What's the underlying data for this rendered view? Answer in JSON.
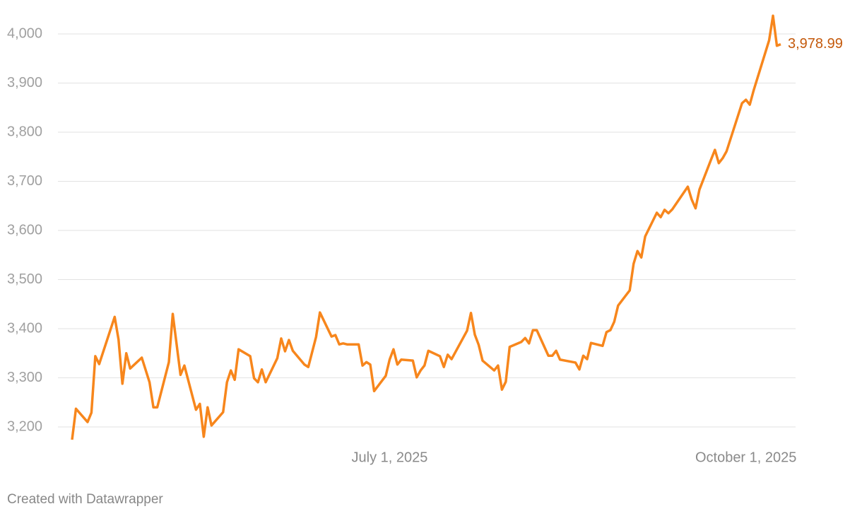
{
  "chart_data": {
    "type": "line",
    "credit": "Created with Datawrapper",
    "x": [
      "2025-04-10",
      "2025-04-11",
      "2025-04-14",
      "2025-04-15",
      "2025-04-16",
      "2025-04-17",
      "2025-04-21",
      "2025-04-22",
      "2025-04-23",
      "2025-04-24",
      "2025-04-25",
      "2025-04-28",
      "2025-04-30",
      "2025-05-01",
      "2025-05-02",
      "2025-05-05",
      "2025-05-06",
      "2025-05-08",
      "2025-05-09",
      "2025-05-12",
      "2025-05-13",
      "2025-05-14",
      "2025-05-15",
      "2025-05-16",
      "2025-05-19",
      "2025-05-20",
      "2025-05-21",
      "2025-05-22",
      "2025-05-23",
      "2025-05-26",
      "2025-05-27",
      "2025-05-28",
      "2025-05-29",
      "2025-05-30",
      "2025-06-02",
      "2025-06-03",
      "2025-06-04",
      "2025-06-05",
      "2025-06-06",
      "2025-06-09",
      "2025-06-10",
      "2025-06-12",
      "2025-06-13",
      "2025-06-16",
      "2025-06-17",
      "2025-06-18",
      "2025-06-19",
      "2025-06-20",
      "2025-06-23",
      "2025-06-24",
      "2025-06-25",
      "2025-06-26",
      "2025-06-27",
      "2025-06-30",
      "2025-07-01",
      "2025-07-02",
      "2025-07-03",
      "2025-07-04",
      "2025-07-07",
      "2025-07-08",
      "2025-07-09",
      "2025-07-10",
      "2025-07-11",
      "2025-07-14",
      "2025-07-15",
      "2025-07-16",
      "2025-07-17",
      "2025-07-21",
      "2025-07-22",
      "2025-07-23",
      "2025-07-24",
      "2025-07-25",
      "2025-07-28",
      "2025-07-29",
      "2025-07-30",
      "2025-07-31",
      "2025-08-01",
      "2025-08-04",
      "2025-08-05",
      "2025-08-06",
      "2025-08-07",
      "2025-08-08",
      "2025-08-11",
      "2025-08-12",
      "2025-08-13",
      "2025-08-14",
      "2025-08-18",
      "2025-08-19",
      "2025-08-20",
      "2025-08-21",
      "2025-08-22",
      "2025-08-25",
      "2025-08-26",
      "2025-08-27",
      "2025-08-28",
      "2025-08-29",
      "2025-09-01",
      "2025-09-02",
      "2025-09-03",
      "2025-09-04",
      "2025-09-05",
      "2025-09-08",
      "2025-09-09",
      "2025-09-10",
      "2025-09-11",
      "2025-09-12",
      "2025-09-16",
      "2025-09-17",
      "2025-09-18",
      "2025-09-19",
      "2025-09-22",
      "2025-09-23",
      "2025-09-24",
      "2025-09-25",
      "2025-09-26",
      "2025-09-30",
      "2025-10-01",
      "2025-10-02",
      "2025-10-03",
      "2025-10-07",
      "2025-10-08",
      "2025-10-09",
      "2025-10-10"
    ],
    "series": [
      {
        "color": "#f7861c",
        "values": [
          3174,
          3237,
          3210,
          3229,
          3344,
          3328,
          3424,
          3378,
          3288,
          3350,
          3319,
          3341,
          3291,
          3240,
          3240,
          3332,
          3430,
          3306,
          3325,
          3235,
          3247,
          3180,
          3240,
          3203,
          3230,
          3291,
          3315,
          3296,
          3358,
          3344,
          3299,
          3291,
          3317,
          3291,
          3340,
          3380,
          3354,
          3377,
          3355,
          3327,
          3322,
          3383,
          3433,
          3384,
          3387,
          3368,
          3370,
          3368,
          3368,
          3325,
          3332,
          3327,
          3273,
          3304,
          3337,
          3358,
          3327,
          3337,
          3335,
          3301,
          3315,
          3325,
          3355,
          3344,
          3322,
          3347,
          3338,
          3396,
          3432,
          3388,
          3367,
          3335,
          3315,
          3325,
          3276,
          3292,
          3363,
          3373,
          3381,
          3370,
          3397,
          3397,
          3345,
          3345,
          3355,
          3337,
          3331,
          3317,
          3345,
          3338,
          3371,
          3365,
          3393,
          3397,
          3414,
          3447,
          3478,
          3532,
          3558,
          3545,
          3588,
          3636,
          3627,
          3642,
          3635,
          3643,
          3689,
          3663,
          3645,
          3683,
          3744,
          3764,
          3737,
          3747,
          3761,
          3859,
          3866,
          3856,
          3885,
          3987,
          4037,
          3976,
          3978.99
        ],
        "value_labels": [
          null,
          null,
          null,
          null,
          null,
          null,
          null,
          null,
          null,
          null,
          null,
          null,
          null,
          null,
          null,
          null,
          null,
          null,
          null,
          null,
          null,
          null,
          null,
          null,
          null,
          null,
          null,
          null,
          null,
          null,
          null,
          null,
          null,
          null,
          null,
          null,
          null,
          null,
          null,
          null,
          null,
          null,
          null,
          null,
          null,
          null,
          null,
          null,
          null,
          null,
          null,
          null,
          null,
          null,
          null,
          null,
          null,
          null,
          null,
          null,
          null,
          null,
          null,
          null,
          null,
          null,
          null,
          null,
          null,
          null,
          null,
          null,
          null,
          null,
          null,
          null,
          null,
          null,
          null,
          null,
          null,
          null,
          null,
          null,
          null,
          null,
          null,
          null,
          null,
          null,
          null,
          null,
          null,
          null,
          null,
          null,
          null,
          null,
          null,
          null,
          null,
          null,
          null,
          null,
          null,
          null,
          null,
          null,
          null,
          null,
          null,
          null,
          null,
          null,
          null,
          null,
          null,
          null,
          null,
          null,
          null,
          null,
          "3,978.99"
        ],
        "label_color": "#c4590b"
      }
    ],
    "xlim": [
      "2025-04-10",
      "2025-10-10"
    ],
    "xticks": [
      {
        "value": "2025-07-01",
        "label": "July 1, 2025"
      },
      {
        "value": "2025-10-01",
        "label": "October 1, 2025"
      }
    ],
    "ylim": [
      3200,
      4000
    ],
    "yticks": [
      {
        "value": 3200,
        "label": "3,200"
      },
      {
        "value": 3300,
        "label": "3,300"
      },
      {
        "value": 3400,
        "label": "3,400"
      },
      {
        "value": 3500,
        "label": "3,500"
      },
      {
        "value": 3600,
        "label": "3,600"
      },
      {
        "value": 3700,
        "label": "3,700"
      },
      {
        "value": 3800,
        "label": "3,800"
      },
      {
        "value": 3900,
        "label": "3,900"
      },
      {
        "value": 4000,
        "label": "4,000"
      }
    ],
    "grid": true
  }
}
